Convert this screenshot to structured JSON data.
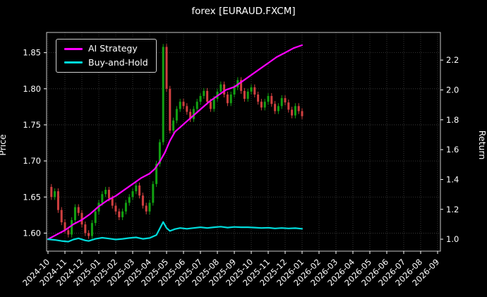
{
  "chart_data": {
    "type": "candlestick+line",
    "title": "forex [EURAUD.FXCM]",
    "ylabel_left": "Price",
    "ylabel_right": "Return",
    "legend_position": "top-left",
    "grid": true,
    "x_tick_labels": [
      "2024-10",
      "2024-11",
      "2024-12",
      "2025-01",
      "2025-02",
      "2025-03",
      "2025-04",
      "2025-05",
      "2025-06",
      "2025-07",
      "2025-08",
      "2025-09",
      "2025-10",
      "2025-11",
      "2025-12",
      "2026-01",
      "2026-02",
      "2026-03",
      "2026-04",
      "2026-05",
      "2026-06",
      "2026-07",
      "2026-08",
      "2026-09"
    ],
    "price_ticks": [
      {
        "v": 1.6,
        "label": "1.60"
      },
      {
        "v": 1.65,
        "label": "1.65"
      },
      {
        "v": 1.7,
        "label": "1.70"
      },
      {
        "v": 1.75,
        "label": "1.75"
      },
      {
        "v": 1.8,
        "label": "1.80"
      },
      {
        "v": 1.85,
        "label": "1.85"
      }
    ],
    "return_ticks": [
      {
        "v": 1.0,
        "label": "1.0"
      },
      {
        "v": 1.2,
        "label": "1.2"
      },
      {
        "v": 1.4,
        "label": "1.4"
      },
      {
        "v": 1.6,
        "label": "1.6"
      },
      {
        "v": 1.8,
        "label": "1.8"
      },
      {
        "v": 2.0,
        "label": "2.0"
      },
      {
        "v": 2.2,
        "label": "2.2"
      }
    ],
    "price_range": [
      1.575,
      1.878
    ],
    "return_range": [
      0.92,
      2.385
    ],
    "x_range_months": [
      0,
      23
    ],
    "candles": {
      "start_month": 0,
      "step_months": 0.2,
      "wick": 0.004,
      "up_color": "#12a112",
      "down_color": "#d04040",
      "closes": [
        1.664,
        1.65,
        1.658,
        1.632,
        1.615,
        1.604,
        1.598,
        1.618,
        1.636,
        1.628,
        1.612,
        1.6,
        1.596,
        1.614,
        1.63,
        1.642,
        1.654,
        1.66,
        1.648,
        1.638,
        1.63,
        1.622,
        1.63,
        1.642,
        1.65,
        1.658,
        1.666,
        1.652,
        1.638,
        1.63,
        1.642,
        1.668,
        1.696,
        1.726,
        1.858,
        1.8,
        1.742,
        1.756,
        1.772,
        1.782,
        1.776,
        1.768,
        1.758,
        1.772,
        1.782,
        1.79,
        1.797,
        1.782,
        1.772,
        1.786,
        1.796,
        1.806,
        1.792,
        1.78,
        1.792,
        1.802,
        1.812,
        1.797,
        1.786,
        1.796,
        1.802,
        1.792,
        1.782,
        1.774,
        1.782,
        1.79,
        1.779,
        1.769,
        1.776,
        1.787,
        1.781,
        1.771,
        1.763,
        1.776,
        1.769,
        1.762
      ]
    },
    "series": [
      {
        "name": "AI Strategy",
        "color": "#ff00ff",
        "axis": "return",
        "points": [
          [
            0,
            1.0
          ],
          [
            0.5,
            1.03
          ],
          [
            1,
            1.06
          ],
          [
            1.5,
            1.1
          ],
          [
            2,
            1.13
          ],
          [
            2.5,
            1.17
          ],
          [
            3,
            1.22
          ],
          [
            3.5,
            1.26
          ],
          [
            4,
            1.29
          ],
          [
            4.5,
            1.33
          ],
          [
            5,
            1.37
          ],
          [
            5.5,
            1.41
          ],
          [
            6,
            1.44
          ],
          [
            6.3,
            1.47
          ],
          [
            6.6,
            1.52
          ],
          [
            6.9,
            1.58
          ],
          [
            7.2,
            1.66
          ],
          [
            7.5,
            1.72
          ],
          [
            7.8,
            1.75
          ],
          [
            8,
            1.77
          ],
          [
            8.5,
            1.82
          ],
          [
            9,
            1.87
          ],
          [
            9.5,
            1.92
          ],
          [
            10,
            1.96
          ],
          [
            10.5,
            2.0
          ],
          [
            11,
            2.02
          ],
          [
            11.5,
            2.06
          ],
          [
            12,
            2.1
          ],
          [
            12.5,
            2.14
          ],
          [
            13,
            2.18
          ],
          [
            13.5,
            2.22
          ],
          [
            14,
            2.25
          ],
          [
            14.5,
            2.28
          ],
          [
            15,
            2.3
          ]
        ]
      },
      {
        "name": "Buy-and-Hold",
        "color": "#00dcdc",
        "axis": "return",
        "points": [
          [
            0,
            1.0
          ],
          [
            0.4,
            0.995
          ],
          [
            0.8,
            0.988
          ],
          [
            1.2,
            0.984
          ],
          [
            1.5,
            0.998
          ],
          [
            1.8,
            1.006
          ],
          [
            2.2,
            0.992
          ],
          [
            2.4,
            0.988
          ],
          [
            2.8,
            1.002
          ],
          [
            3.2,
            1.01
          ],
          [
            3.6,
            1.004
          ],
          [
            4.0,
            0.998
          ],
          [
            4.4,
            1.002
          ],
          [
            4.8,
            1.008
          ],
          [
            5.2,
            1.012
          ],
          [
            5.6,
            1.002
          ],
          [
            6.0,
            1.008
          ],
          [
            6.4,
            1.028
          ],
          [
            6.8,
            1.115
          ],
          [
            7.0,
            1.075
          ],
          [
            7.2,
            1.055
          ],
          [
            7.5,
            1.068
          ],
          [
            7.8,
            1.075
          ],
          [
            8.2,
            1.07
          ],
          [
            8.6,
            1.075
          ],
          [
            9.0,
            1.08
          ],
          [
            9.4,
            1.075
          ],
          [
            9.8,
            1.08
          ],
          [
            10.2,
            1.084
          ],
          [
            10.6,
            1.078
          ],
          [
            11.0,
            1.082
          ],
          [
            11.4,
            1.08
          ],
          [
            11.8,
            1.08
          ],
          [
            12.2,
            1.078
          ],
          [
            12.6,
            1.075
          ],
          [
            13.0,
            1.077
          ],
          [
            13.4,
            1.072
          ],
          [
            13.8,
            1.075
          ],
          [
            14.2,
            1.072
          ],
          [
            14.6,
            1.074
          ],
          [
            15.0,
            1.07
          ]
        ]
      }
    ],
    "colors": {
      "background": "#000000",
      "text": "#ffffff",
      "grid": "#606060",
      "frame": "#c8c8c8"
    }
  }
}
